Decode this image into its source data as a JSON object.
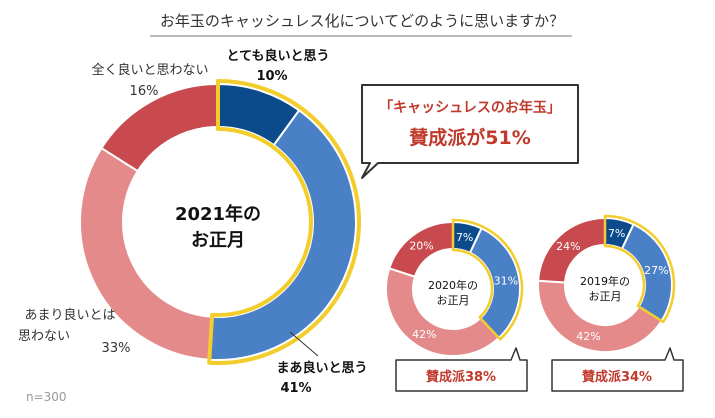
{
  "colors": {
    "strong_yes": "#0b4a8b",
    "yes": "#4a80c6",
    "not_really": "#e48a8a",
    "not_at_all": "#c84a4e",
    "highlight": "#f2cd2c",
    "callout_text": "#c0392b"
  },
  "note": "n=300",
  "chart_data": {
    "title": "お年玉のキャッシュレス化についてどのように思いますか？",
    "charts": [
      {
        "type": "pie",
        "center_label": [
          "2021年の",
          "お正月"
        ],
        "slices": [
          {
            "name": "とても良いと思う",
            "value": 10,
            "label": "10%"
          },
          {
            "name": "まあ良いと思う",
            "value": 41,
            "label": "41%"
          },
          {
            "name": "あまり良いとは思わない",
            "value": 33,
            "label": "33%"
          },
          {
            "name": "全く良いと思わない",
            "value": 16,
            "label": "16%"
          }
        ],
        "callout": [
          "「キャッシュレスのお年玉」",
          "賛成派が51%"
        ]
      },
      {
        "type": "pie",
        "center_label": [
          "2020年の",
          "お正月"
        ],
        "slices": [
          {
            "name": "とても良いと思う",
            "value": 7,
            "label": "7%"
          },
          {
            "name": "まあ良いと思う",
            "value": 31,
            "label": "31%"
          },
          {
            "name": "あまり良いとは思わない",
            "value": 42,
            "label": "42%"
          },
          {
            "name": "全く良いと思わない",
            "value": 20,
            "label": "20%"
          }
        ],
        "callout": [
          "賛成派38%"
        ]
      },
      {
        "type": "pie",
        "center_label": [
          "2019年の",
          "お正月"
        ],
        "slices": [
          {
            "name": "とても良いと思う",
            "value": 7,
            "label": "7%"
          },
          {
            "name": "まあ良いと思う",
            "value": 27,
            "label": "27%"
          },
          {
            "name": "あまり良いとは思わない",
            "value": 42,
            "label": "42%"
          },
          {
            "name": "全く良いと思わない",
            "value": 24,
            "label": "24%"
          }
        ],
        "callout": [
          "賛成派34%"
        ]
      }
    ]
  }
}
